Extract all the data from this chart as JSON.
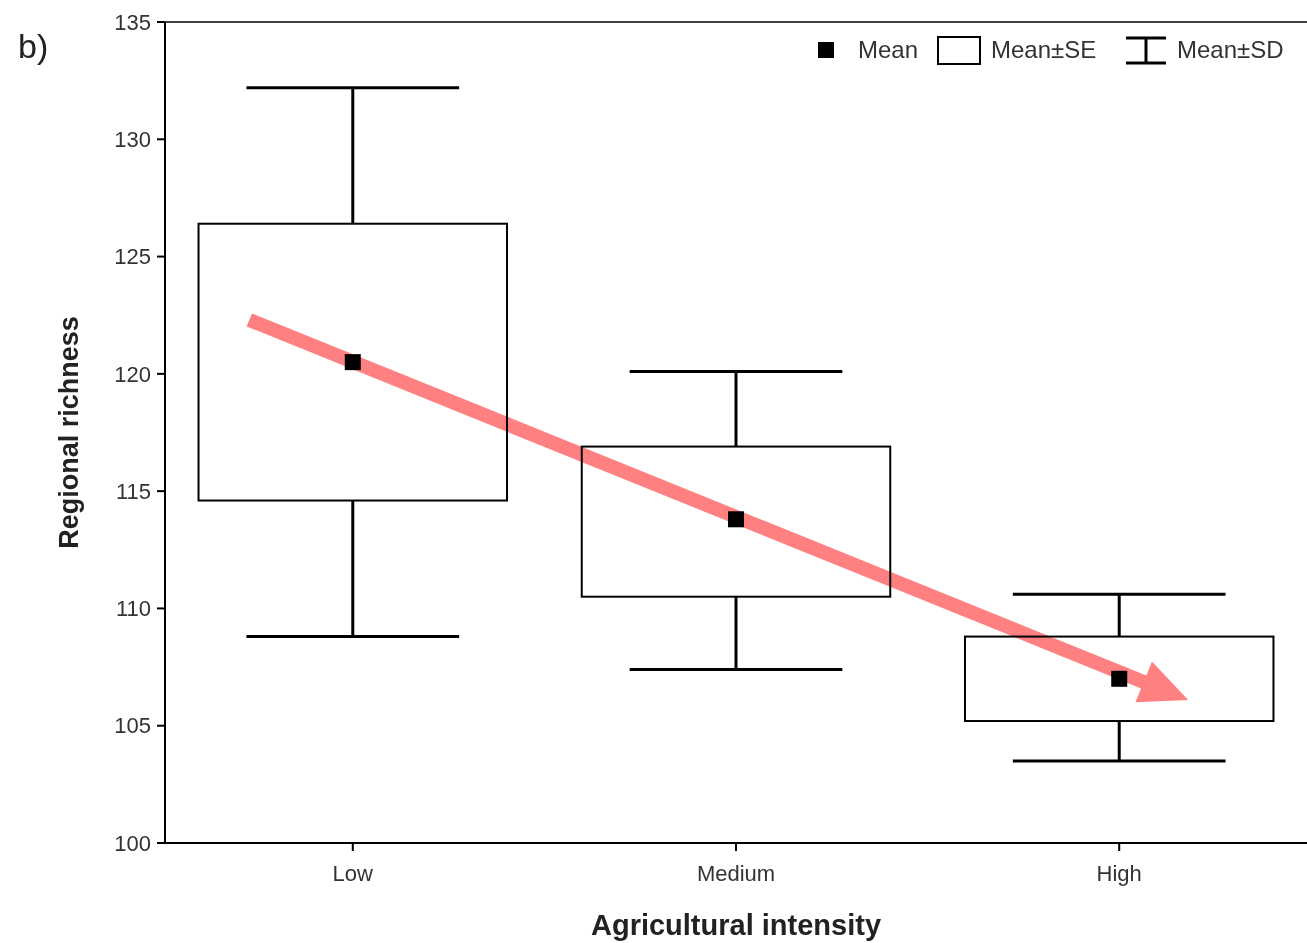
{
  "chart_data": {
    "type": "box",
    "xlabel": "Agricultural intensity",
    "ylabel": "Regional richness",
    "categories": [
      "Low",
      "Medium",
      "High"
    ],
    "ylim": [
      100,
      135
    ],
    "yticks": [
      100,
      105,
      110,
      115,
      120,
      125,
      130,
      135
    ],
    "grid": false,
    "legend": "top right",
    "marker": "square",
    "annotations": [
      "b)",
      "Mean±SD",
      "Mean"
    ],
    "series": [
      {
        "name": "Mean±SE",
        "color": "#000000",
        "boxes": [
          {
            "low": 108.8,
            "q1": 114.6,
            "median": 120.5,
            "q3": 126.4,
            "high": 132.2
          },
          {
            "low": 107.4,
            "q1": 110.5,
            "median": 113.8,
            "q3": 116.9,
            "high": 120.1
          },
          {
            "low": 103.5,
            "q1": 105.2,
            "median": 107.0,
            "q3": 108.8,
            "high": 110.6
          }
        ]
      }
    ]
  }
}
